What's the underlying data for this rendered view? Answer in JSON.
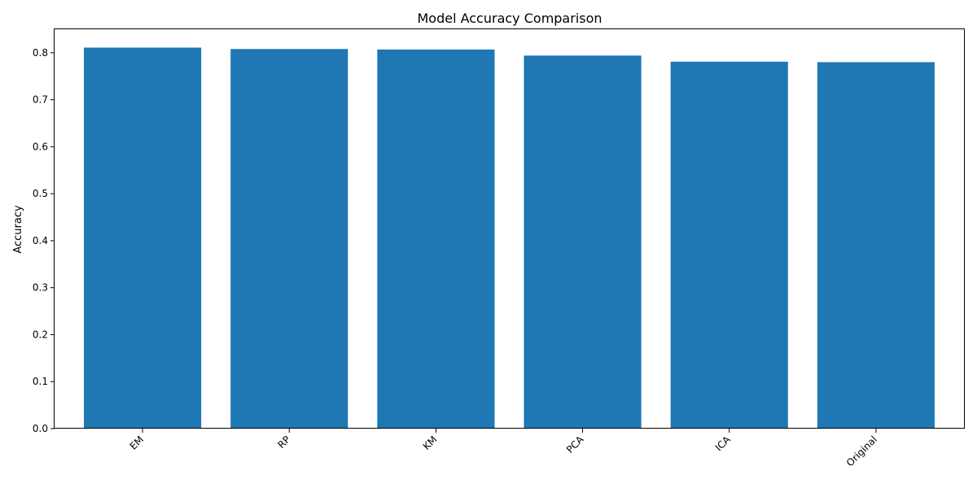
{
  "chart_data": {
    "type": "bar",
    "title": "Model Accuracy Comparison",
    "xlabel": "",
    "ylabel": "Accuracy",
    "categories": [
      "EM",
      "RP",
      "KM",
      "PCA",
      "ICA",
      "Original"
    ],
    "values": [
      0.811,
      0.808,
      0.807,
      0.794,
      0.781,
      0.78
    ],
    "ylim": [
      0,
      0.85
    ],
    "yticks": [
      0.0,
      0.1,
      0.2,
      0.3,
      0.4,
      0.5,
      0.6,
      0.7,
      0.8
    ],
    "ytick_labels": [
      "0.0",
      "0.1",
      "0.2",
      "0.3",
      "0.4",
      "0.5",
      "0.6",
      "0.7",
      "0.8"
    ],
    "bar_color": "#1f77b4",
    "grid": false,
    "legend": "none"
  }
}
